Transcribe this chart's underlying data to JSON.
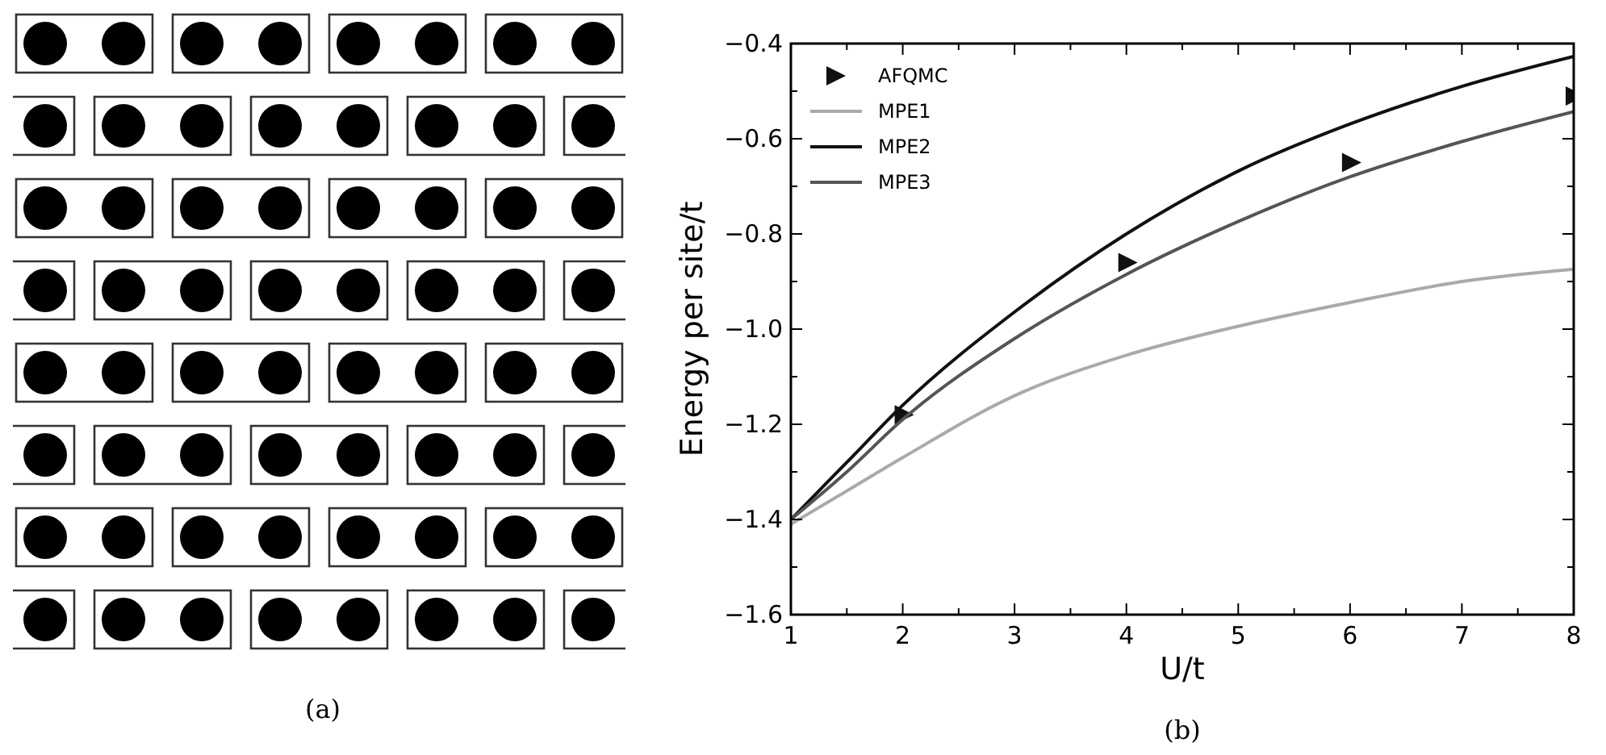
{
  "chart_data": {
    "type": "line",
    "xlabel": "U/t",
    "ylabel": "Energy per site/t",
    "xlim": [
      1,
      8
    ],
    "ylim": [
      -1.6,
      -0.4
    ],
    "xticks": [
      1,
      {
        "value": 1.5,
        "label": null
      },
      2,
      {
        "value": 2.5,
        "label": null
      },
      3,
      {
        "value": 3.5,
        "label": null
      },
      4,
      {
        "value": 4.5,
        "label": null
      },
      5,
      {
        "value": 5.5,
        "label": null
      },
      6,
      {
        "value": 6.5,
        "label": null
      },
      7,
      {
        "value": 7.5,
        "label": null
      },
      8
    ],
    "yticks": [
      {
        "value": -1.6,
        "label": "−1.6"
      },
      {
        "value": -1.5,
        "label": null
      },
      {
        "value": -1.4,
        "label": "−1.4"
      },
      {
        "value": -1.3,
        "label": null
      },
      {
        "value": -1.2,
        "label": "−1.2"
      },
      {
        "value": -1.1,
        "label": null
      },
      {
        "value": -1.0,
        "label": "−1.0"
      },
      {
        "value": -0.9,
        "label": null
      },
      {
        "value": -0.8,
        "label": "−0.8"
      },
      {
        "value": -0.7,
        "label": null
      },
      {
        "value": -0.6,
        "label": "−0.6"
      },
      {
        "value": -0.5,
        "label": null
      },
      {
        "value": -0.4,
        "label": "−0.4"
      }
    ],
    "legend": "top left",
    "grid": false,
    "series": [
      {
        "name": "AFQMC",
        "type": "scatter",
        "marker": "triangle",
        "color": "#111111",
        "x": [
          2,
          4,
          6,
          8
        ],
        "values": [
          -1.18,
          -0.86,
          -0.65,
          -0.51
        ]
      },
      {
        "name": "MPE1",
        "marker": "none",
        "color": "#aaaaaa",
        "x": [
          1,
          1.5,
          2,
          3,
          4,
          5,
          6,
          7,
          8
        ],
        "values": [
          -1.41,
          -1.34,
          -1.27,
          -1.14,
          -1.055,
          -0.994,
          -0.944,
          -0.9,
          -0.874
        ]
      },
      {
        "name": "MPE2",
        "marker": "none",
        "color": "#111111",
        "x": [
          1,
          1.5,
          2,
          3,
          4,
          5,
          6,
          7,
          8
        ],
        "values": [
          -1.4,
          -1.28,
          -1.16,
          -0.964,
          -0.8,
          -0.668,
          -0.569,
          -0.49,
          -0.427
        ]
      },
      {
        "name": "MPE3",
        "marker": "none",
        "color": "#555555",
        "x": [
          1,
          1.5,
          2,
          3,
          4,
          5,
          6,
          7,
          8
        ],
        "values": [
          -1.4,
          -1.3,
          -1.19,
          -1.02,
          -0.885,
          -0.774,
          -0.68,
          -0.606,
          -0.543
        ]
      }
    ],
    "annotations": [
      "(a)",
      "(b)"
    ]
  }
}
